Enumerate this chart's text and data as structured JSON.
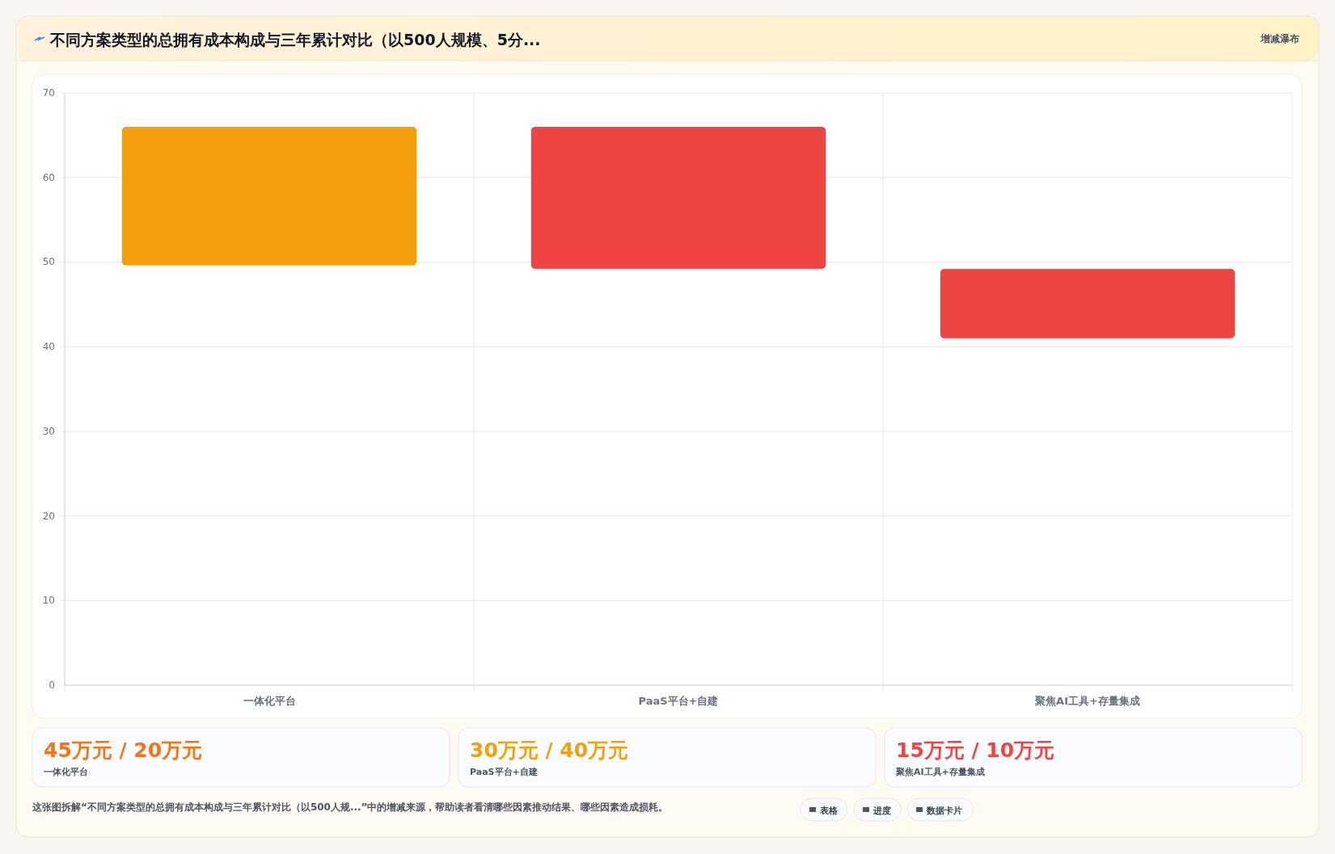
{
  "chart_data": {
    "type": "bar",
    "title": "不同方案类型的总拥有成本构成与三年累计对比（以500人规模、5分...",
    "categories": [
      "一体化平台",
      "PaaS平台+自建",
      "聚焦AI工具+存量集成"
    ],
    "values": [
      16.4,
      16.8,
      8.2
    ],
    "base": [
      49.6,
      49.2,
      41
    ],
    "colors": [
      "#f59e0b",
      "#ef4444",
      "#ef4444"
    ],
    "ylim": [
      0,
      70
    ],
    "yticks": [
      0,
      10,
      20,
      30,
      40,
      50,
      60,
      70
    ],
    "grid": true,
    "annotations": [
      "增减瀑布",
      "45万元 / 20万元",
      "一体化平台",
      "30万元 / 40万元",
      "PaaS平台+自建",
      "15万元 / 10万元",
      "聚焦AI工具+存量集成",
      "这张图拆解“不同方案类型的总拥有成本构成与三年累计对比（以500人规...”中的增减来源，帮助读者看清哪些因素推动结果、哪些因素造成损耗。",
      "表格",
      "进度",
      "数据卡片"
    ]
  }
}
